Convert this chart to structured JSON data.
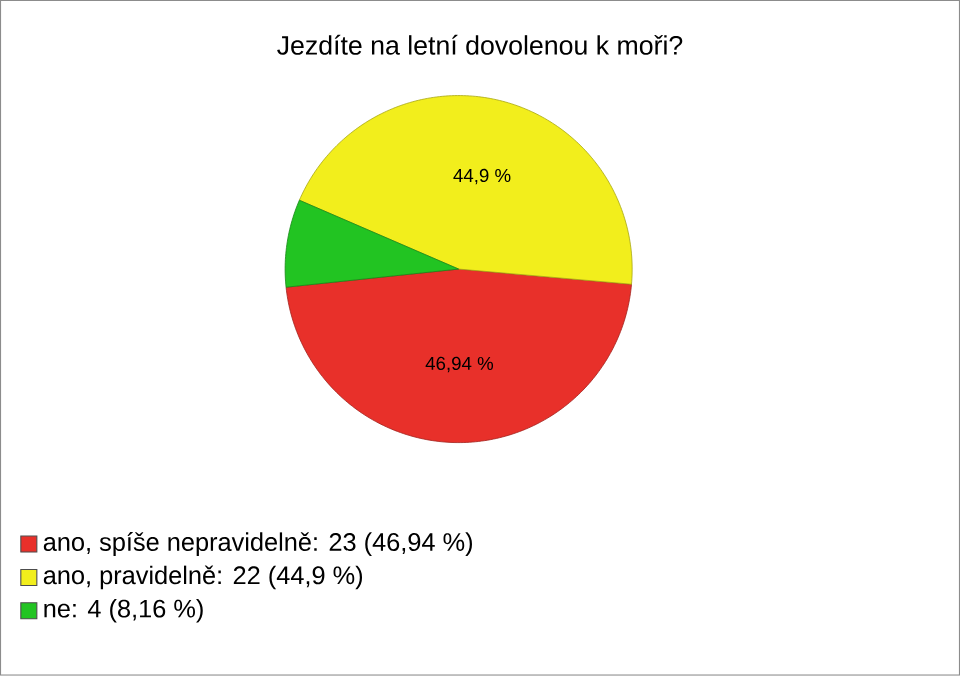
{
  "chart_data": {
    "type": "pie",
    "title": "Jezdíte na letní dovolenou k moři?",
    "categories": [
      "ano, spíše nepravidelně: 23 (46,94 %)",
      "ano, pravidelně: 22 (44,9 %)",
      "ne: 4 (8,16 %)"
    ],
    "values": [
      46.94,
      44.9,
      8.16
    ],
    "colors": [
      "#e8302a",
      "#f2ee1c",
      "#22c422"
    ],
    "value_labels": [
      "46,94 %",
      "44,9 %",
      null
    ],
    "legend": "bottom left"
  }
}
